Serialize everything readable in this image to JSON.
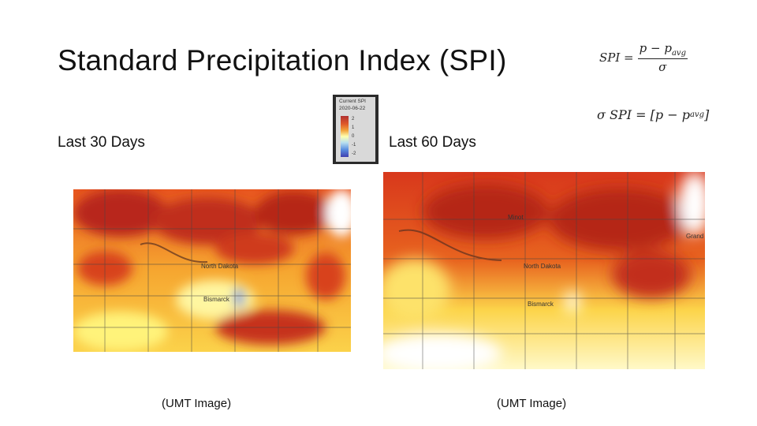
{
  "title": "Standard Precipitation Index (SPI)",
  "formula_1": {
    "lhs": "SPI =",
    "numerator": "p − p",
    "numerator_sub": "avg",
    "denominator": "σ"
  },
  "formula_2": {
    "lhs": "σ SPI =",
    "body": "[p − p",
    "sub": "avg",
    "close": "]"
  },
  "legend": {
    "title": "Current SPI",
    "date": "2020-06-22",
    "ticks": [
      "2",
      "1",
      "0",
      "-1",
      "-2"
    ]
  },
  "panels": [
    {
      "label": "Last 30 Days",
      "caption": "(UMT Image)",
      "map_labels": [
        "North Dakota",
        "Bismarck"
      ]
    },
    {
      "label": "Last 60 Days",
      "caption": "(UMT Image)",
      "map_labels": [
        "Minot",
        "North Dakota",
        "Bismarck",
        "Grand"
      ]
    }
  ]
}
